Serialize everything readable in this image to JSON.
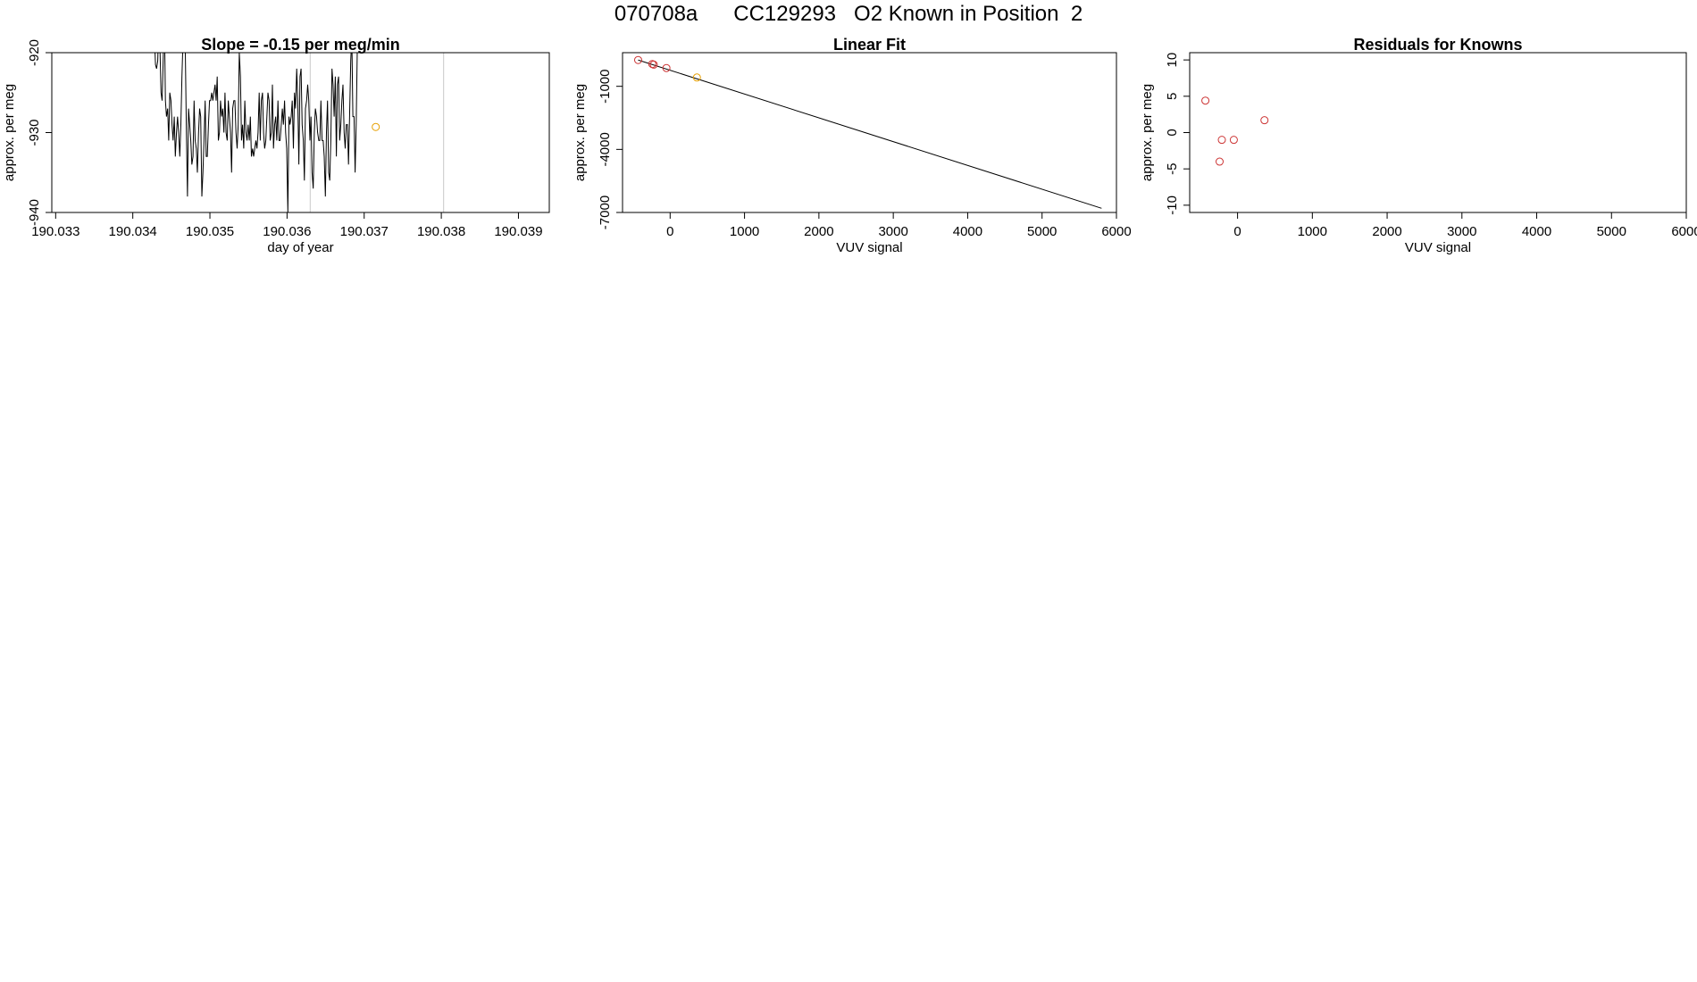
{
  "page_title": "070708a      CC129293   O2 Known in Position  2",
  "chart_data": [
    {
      "type": "line",
      "title": "Slope =  -0.15  per meg/min",
      "xlabel": "day of year",
      "ylabel": "approx. per meg",
      "xlim": [
        190.03295,
        190.0394
      ],
      "ylim": [
        -940,
        -920
      ],
      "xticks": [
        190.033,
        190.034,
        190.035,
        190.036,
        190.037,
        190.038,
        190.039
      ],
      "xtick_labels": [
        "190.033",
        "190.034",
        "190.035",
        "190.036",
        "190.037",
        "190.038",
        "190.039"
      ],
      "yticks": [
        -940,
        -930,
        -920
      ],
      "ytick_labels": [
        "-940",
        "-930",
        "-920"
      ],
      "vlines": [
        190.0363,
        190.03803
      ],
      "series": [
        {
          "color": "#000000",
          "x_start": 190.03428,
          "x_step": 1.43e-05,
          "values": [
            -918,
            -921.5,
            -922,
            -921,
            -916,
            -919,
            -925,
            -926,
            -921,
            -915,
            -926,
            -928,
            -927,
            -931,
            -925,
            -926,
            -929,
            -931,
            -928,
            -933,
            -930,
            -928,
            -930,
            -933,
            -929,
            -923,
            -918,
            -914,
            -919,
            -930,
            -938,
            -927,
            -929,
            -931,
            -934,
            -933,
            -926,
            -931,
            -932,
            -935,
            -930,
            -927,
            -928,
            -938,
            -935,
            -931,
            -926,
            -933,
            -933,
            -929,
            -926,
            -926,
            -925,
            -926,
            -925,
            -924,
            -926,
            -923,
            -931,
            -930,
            -926,
            -928,
            -927,
            -930,
            -925,
            -930,
            -931,
            -926,
            -928,
            -930,
            -935,
            -927,
            -926,
            -926,
            -930,
            -932,
            -929,
            -920,
            -923,
            -931,
            -929,
            -932,
            -926,
            -930,
            -931,
            -929,
            -931,
            -928,
            -933,
            -932,
            -933,
            -932,
            -931,
            -932,
            -930,
            -925,
            -931,
            -926,
            -925,
            -930,
            -932,
            -931,
            -928,
            -925,
            -926,
            -931,
            -930,
            -924,
            -932,
            -929,
            -928,
            -931,
            -926,
            -931,
            -931,
            -929,
            -927,
            -929,
            -926,
            -930,
            -932,
            -940,
            -928,
            -929,
            -928,
            -926,
            -932,
            -925,
            -927,
            -922,
            -926,
            -934,
            -923,
            -922,
            -929,
            -931,
            -936,
            -927,
            -926,
            -924,
            -926,
            -931,
            -928,
            -935,
            -937,
            -930,
            -927,
            -928,
            -930,
            -931,
            -931,
            -926,
            -931,
            -931,
            -933,
            -938,
            -930,
            -926,
            -935,
            -936,
            -931,
            -922,
            -924,
            -928,
            -923,
            -933,
            -924,
            -923,
            -931,
            -929,
            -926,
            -924,
            -930,
            -932,
            -929,
            -929,
            -934,
            -928,
            -921,
            -918,
            -928,
            -928,
            -935,
            -929,
            -919
          ]
        }
      ],
      "points": [
        {
          "x": 190.03715,
          "y": -929.3,
          "color": "#e69f00"
        }
      ]
    },
    {
      "type": "scatter",
      "title": "Linear Fit",
      "xlabel": "VUV signal",
      "ylabel": "approx. per meg",
      "xlim": [
        -640,
        6000
      ],
      "ylim": [
        -7000,
        600
      ],
      "xticks": [
        0,
        1000,
        2000,
        3000,
        4000,
        5000,
        6000
      ],
      "xtick_labels": [
        "0",
        "1000",
        "2000",
        "3000",
        "4000",
        "5000",
        "6000"
      ],
      "yticks": [
        -7000,
        -4000,
        -1000
      ],
      "ytick_labels": [
        "-7000",
        "-4000",
        "-1000"
      ],
      "fit_line": {
        "x": [
          -430,
          5800
        ],
        "y": [
          250,
          -6800
        ]
      },
      "points": [
        {
          "x": -430,
          "y": 250,
          "color": "#cc3333"
        },
        {
          "x": -240,
          "y": 60,
          "color": "#cc3333"
        },
        {
          "x": -220,
          "y": 30,
          "color": "#cc3333"
        },
        {
          "x": -50,
          "y": -130,
          "color": "#cc3333"
        },
        {
          "x": 360,
          "y": -580,
          "color": "#e69f00"
        }
      ]
    },
    {
      "type": "scatter",
      "title": "Residuals for Knowns",
      "xlabel": "VUV signal",
      "ylabel": "approx. per meg",
      "xlim": [
        -640,
        6000
      ],
      "ylim": [
        -11,
        11
      ],
      "xticks": [
        0,
        1000,
        2000,
        3000,
        4000,
        5000,
        6000
      ],
      "xtick_labels": [
        "0",
        "1000",
        "2000",
        "3000",
        "4000",
        "5000",
        "6000"
      ],
      "yticks": [
        -10,
        -5,
        0,
        5,
        10
      ],
      "ytick_labels": [
        "-10",
        "-5",
        "0",
        "5",
        "10"
      ],
      "points": [
        {
          "x": -430,
          "y": 4.4,
          "color": "#cc3333"
        },
        {
          "x": -240,
          "y": -4.0,
          "color": "#cc3333"
        },
        {
          "x": -210,
          "y": -1.0,
          "color": "#cc3333"
        },
        {
          "x": -50,
          "y": -1.0,
          "color": "#cc3333"
        },
        {
          "x": 360,
          "y": 1.7,
          "color": "#cc3333"
        }
      ]
    }
  ]
}
